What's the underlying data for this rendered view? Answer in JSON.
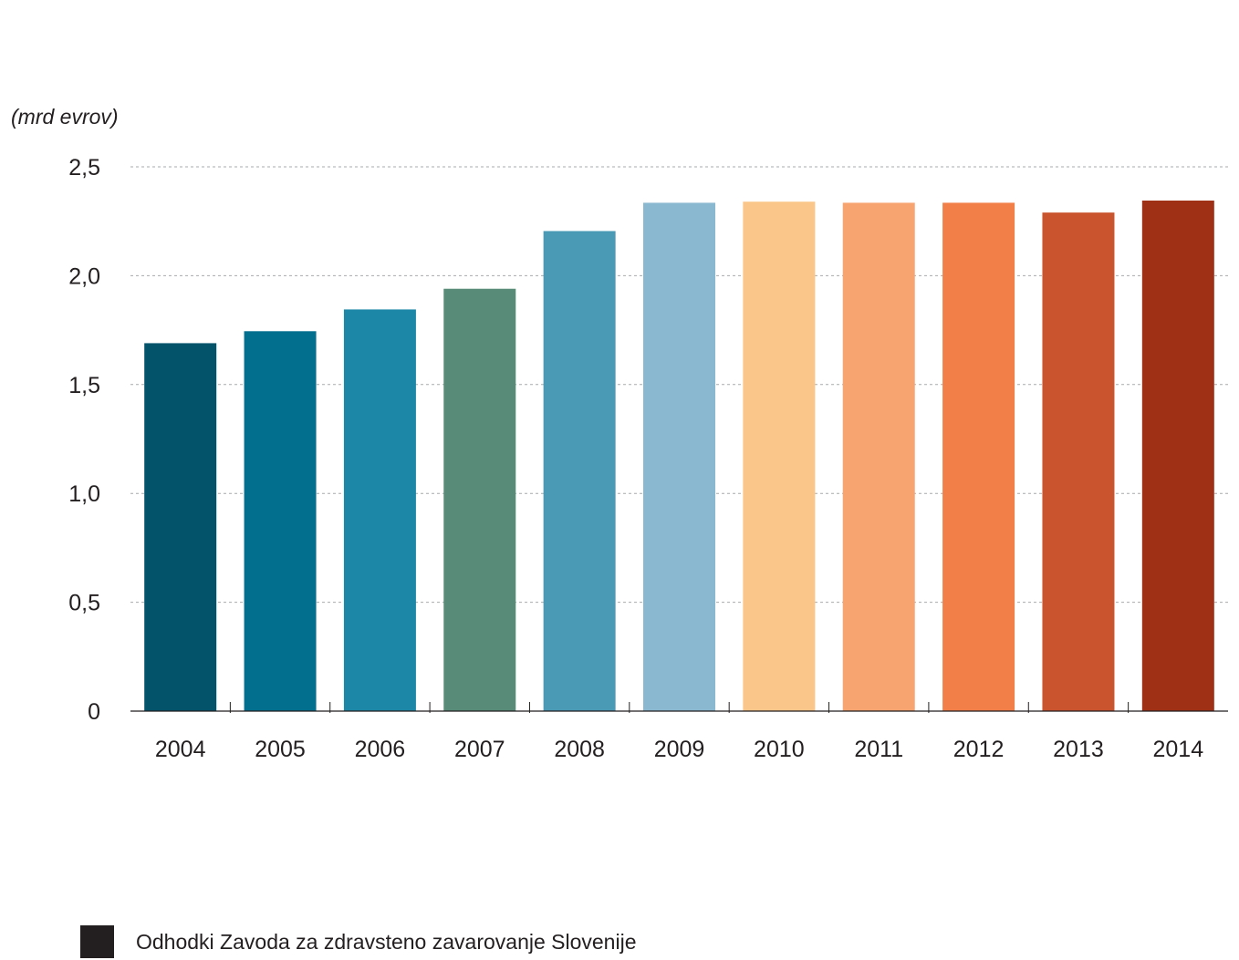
{
  "chart_data": {
    "type": "bar",
    "unit_label": "(mrd evrov)",
    "categories": [
      "2004",
      "2005",
      "2006",
      "2007",
      "2008",
      "2009",
      "2010",
      "2011",
      "2012",
      "2013",
      "2014"
    ],
    "values": [
      1.69,
      1.745,
      1.845,
      1.94,
      2.205,
      2.335,
      2.34,
      2.335,
      2.335,
      2.29,
      2.345
    ],
    "bar_colors": [
      "#03536b",
      "#026f8f",
      "#1c87a6",
      "#588b78",
      "#4a9ab6",
      "#8bb8d1",
      "#fac689",
      "#f8a470",
      "#f37f48",
      "#ca542e",
      "#a03015"
    ],
    "ylim": [
      0,
      2.5
    ],
    "yticks": [
      0,
      0.5,
      1.0,
      1.5,
      2.0,
      2.5
    ],
    "ytick_labels": [
      "0",
      "0,5",
      "1,0",
      "1,5",
      "2,0",
      "2,5"
    ],
    "grid": "horizontal dashed",
    "legend_position": "bottom-left",
    "series": [
      {
        "name": "Odhodki Zavoda za zdravsteno zavarovanje Slovenije",
        "color": "#231f20"
      }
    ]
  }
}
